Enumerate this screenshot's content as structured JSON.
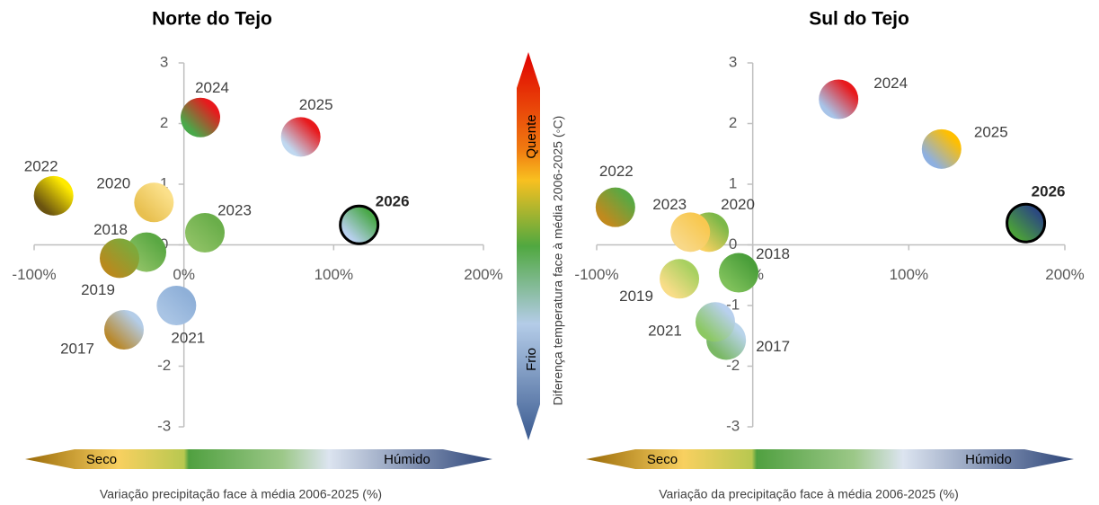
{
  "chart_data": [
    {
      "type": "scatter",
      "title": "Norte do Tejo",
      "xlabel": "Variação precipitação face à média 2006-2025 (%)",
      "dry_label": "Seco",
      "wet_label": "Húmido",
      "point_labels": [
        "2017",
        "2018",
        "2019",
        "2020",
        "2021",
        "2022",
        "2023",
        "2024",
        "2025",
        "2026"
      ],
      "x": [
        -40,
        -25,
        -43,
        -20,
        -5,
        -87,
        14,
        11,
        78,
        117
      ],
      "values": [
        -1.4,
        -0.12,
        -0.22,
        0.7,
        -1.0,
        0.81,
        0.2,
        2.1,
        1.78,
        0.33
      ],
      "fills": [
        [
          "#b4cde8",
          "#b8892e"
        ],
        [
          "#5aa843",
          "#8cc063"
        ],
        [
          "#7fa83a",
          "#b88a1e"
        ],
        [
          "#fbe08a",
          "#e8c050"
        ],
        [
          "#8fb0d8",
          "#a9c4e4"
        ],
        [
          "#ffea00",
          "#6b5410"
        ],
        [
          "#6aae4a",
          "#8cc063"
        ],
        [
          "#e8191c",
          "#4aa84a"
        ],
        [
          "#e8191c",
          "#c0d8f0"
        ],
        [
          "#4aa84a",
          "#b8d0ee"
        ]
      ],
      "highlight": [
        false,
        false,
        false,
        false,
        false,
        false,
        false,
        false,
        false,
        true
      ],
      "xlim": [
        -100,
        200
      ],
      "xticks": [
        {
          "value": -100,
          "label": "-100%"
        },
        {
          "value": 0,
          "label": "0%"
        },
        {
          "value": 100,
          "label": "100%"
        },
        {
          "value": 200,
          "label": "200%"
        }
      ],
      "ylim": [
        -3,
        3
      ],
      "yticks": [
        -3,
        -2,
        -1,
        0,
        1,
        2,
        3
      ]
    },
    {
      "type": "scatter",
      "title": "Sul do Tejo",
      "xlabel": "Variação da precipitação face à média 2006-2025 (%)",
      "dry_label": "Seco",
      "wet_label": "Húmido",
      "point_labels": [
        "2017",
        "2018",
        "2019",
        "2020",
        "2021",
        "2022",
        "2023",
        "2024",
        "2025",
        "2026"
      ],
      "x": [
        -17,
        -9,
        -47,
        -28,
        -24,
        -88,
        -40,
        55,
        121,
        175
      ],
      "values": [
        -1.57,
        -0.46,
        -0.56,
        0.21,
        -1.27,
        0.62,
        0.21,
        2.4,
        1.58,
        0.36
      ],
      "fills": [
        [
          "#b9d4ea",
          "#7ab865"
        ],
        [
          "#4a9e3a",
          "#7ec05a"
        ],
        [
          "#a8d060",
          "#f8dd88"
        ],
        [
          "#7cb848",
          "#f8d060"
        ],
        [
          "#b8d0ee",
          "#8cc863"
        ],
        [
          "#5aa843",
          "#c08a1e"
        ],
        [
          "#f8c850",
          "#f8d888"
        ],
        [
          "#e8191c",
          "#a8c4e8"
        ],
        [
          "#ffbf00",
          "#8eb0e0"
        ],
        [
          "#2c4a80",
          "#4a9e3a"
        ]
      ],
      "highlight": [
        false,
        false,
        false,
        false,
        false,
        false,
        false,
        false,
        false,
        true
      ],
      "xlim": [
        -100,
        200
      ],
      "xticks": [
        {
          "value": -100,
          "label": "-100%"
        },
        {
          "value": 0,
          "label": "0%"
        },
        {
          "value": 100,
          "label": "100%"
        },
        {
          "value": 200,
          "label": "200%"
        }
      ],
      "ylim": [
        -3,
        3
      ],
      "yticks": [
        -3,
        -2,
        -1,
        0,
        1,
        2,
        3
      ]
    }
  ],
  "color_scale": {
    "label": "Diferença temperatura face à média 2006-2025 (◦C)",
    "warm_label": "Quente",
    "cold_label": "Frio"
  }
}
